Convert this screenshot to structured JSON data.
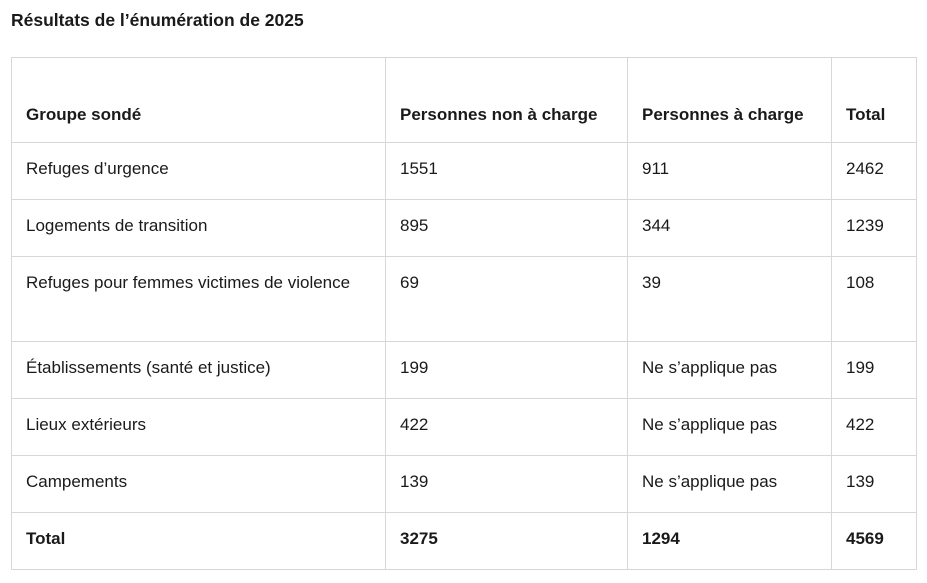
{
  "page": {
    "title": "Résultats de l’énumération de 2025"
  },
  "colors": {
    "text": "#1a1a1a",
    "border": "#d7d7d7",
    "background": "#ffffff"
  },
  "table": {
    "columns": [
      "Groupe sondé",
      "Personnes non à charge",
      "Personnes à charge",
      "Total"
    ],
    "rows": [
      [
        "Refuges d’urgence",
        "1551",
        "911",
        "2462"
      ],
      [
        "Logements de transition",
        "895",
        "344",
        "1239"
      ],
      [
        "Refuges pour femmes victimes de violence",
        "69",
        "39",
        "108"
      ],
      [
        "Établissements (santé et justice)",
        "199",
        "Ne s’applique pas",
        "199"
      ],
      [
        "Lieux extérieurs",
        "422",
        "Ne s’applique pas",
        "422"
      ],
      [
        "Campements",
        "139",
        "Ne s’applique pas",
        "139"
      ]
    ],
    "footer": [
      "Total",
      "3275",
      "1294",
      "4569"
    ]
  }
}
